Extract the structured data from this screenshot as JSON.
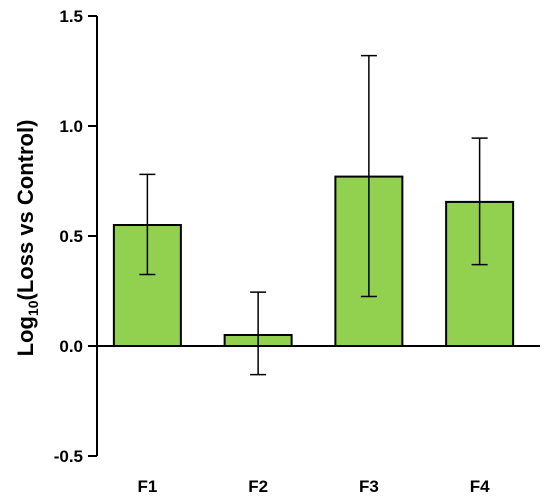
{
  "chart_data": {
    "type": "bar",
    "categories": [
      "F1",
      "F2",
      "F3",
      "F4"
    ],
    "values": [
      0.55,
      0.05,
      0.77,
      0.655
    ],
    "error_low": [
      0.325,
      -0.13,
      0.225,
      0.37
    ],
    "error_high": [
      0.78,
      0.245,
      1.32,
      0.945
    ],
    "ylabel_main": "Log",
    "ylabel_sub": "10",
    "ylabel_rest": "(Loss vs Control)",
    "ylim": [
      -0.5,
      1.5
    ],
    "yticks": [
      "-0.5",
      "0.0",
      "0.5",
      "1.0",
      "1.5"
    ],
    "ytick_values": [
      -0.5,
      0.0,
      0.5,
      1.0,
      1.5
    ],
    "grid": false,
    "bar_color": "#92d050",
    "bar_edge_color": "#000000"
  }
}
